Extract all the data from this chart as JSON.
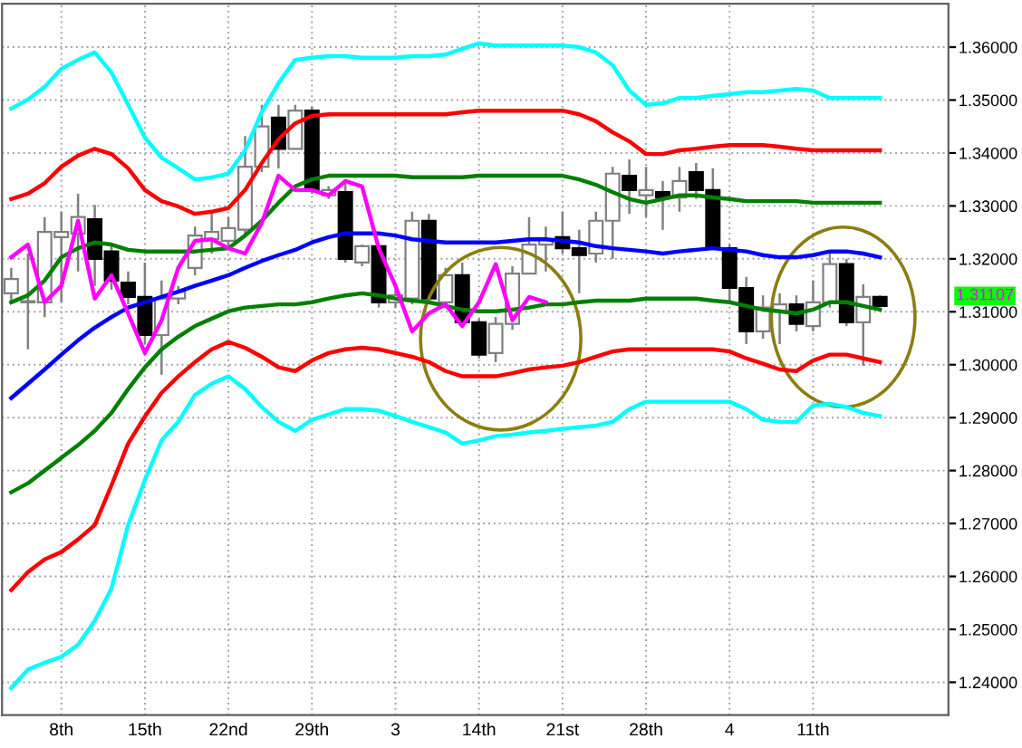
{
  "chart_data": {
    "type": "candlestick",
    "categories": [
      null,
      null,
      null,
      "8th",
      null,
      null,
      null,
      null,
      "15th",
      null,
      null,
      null,
      null,
      "22nd",
      null,
      null,
      null,
      null,
      "29th",
      null,
      null,
      null,
      null,
      "3",
      null,
      null,
      null,
      null,
      "14th",
      null,
      null,
      null,
      null,
      "21st",
      null,
      null,
      null,
      null,
      "28th",
      null,
      null,
      null,
      null,
      "4",
      null,
      null,
      null,
      null,
      "11th",
      null,
      null,
      null,
      null
    ],
    "ohlc": [
      [
        1.3135,
        1.3183,
        1.3114,
        1.3162
      ],
      [
        1.3118,
        1.321,
        1.3029,
        1.312
      ],
      [
        1.3118,
        1.3279,
        1.309,
        1.3251
      ],
      [
        1.3241,
        1.3289,
        1.3118,
        1.3251
      ],
      [
        1.3248,
        1.3323,
        1.3176,
        1.3279
      ],
      [
        1.3275,
        1.3302,
        1.3149,
        1.32
      ],
      [
        1.3214,
        1.3227,
        1.3142,
        1.3159
      ],
      [
        1.3155,
        1.3176,
        1.3114,
        1.3128
      ],
      [
        1.3128,
        1.3193,
        1.3039,
        1.3056
      ],
      [
        1.3056,
        1.3159,
        1.2981,
        1.3125
      ],
      [
        1.3125,
        1.3149,
        1.3114,
        1.3138
      ],
      [
        1.3183,
        1.3261,
        1.3169,
        1.3244
      ],
      [
        1.3237,
        1.3289,
        1.321,
        1.3251
      ],
      [
        1.3234,
        1.3279,
        1.3217,
        1.3258
      ],
      [
        1.3255,
        1.3432,
        1.3244,
        1.3374
      ],
      [
        1.3374,
        1.3491,
        1.3364,
        1.345
      ],
      [
        1.3467,
        1.3491,
        1.3371,
        1.3408
      ],
      [
        1.3408,
        1.3491,
        1.3408,
        1.348
      ],
      [
        1.348,
        1.3487,
        1.3323,
        1.333
      ],
      [
        1.332,
        1.3337,
        1.3313,
        1.333
      ],
      [
        1.3326,
        1.3347,
        1.3193,
        1.32
      ],
      [
        1.3193,
        1.3227,
        1.3186,
        1.3224
      ],
      [
        1.3224,
        1.3227,
        1.3108,
        1.3118
      ],
      [
        1.3118,
        1.3142,
        1.3108,
        1.3131
      ],
      [
        1.3125,
        1.3289,
        1.3114,
        1.3272
      ],
      [
        1.3272,
        1.3285,
        1.3114,
        1.3125
      ],
      [
        1.3118,
        1.3183,
        1.3108,
        1.3169
      ],
      [
        1.3169,
        1.3193,
        1.3073,
        1.308
      ],
      [
        1.308,
        1.3087,
        1.3012,
        1.3019
      ],
      [
        1.3022,
        1.309,
        1.3005,
        1.3077
      ],
      [
        1.3077,
        1.3186,
        1.3066,
        1.3172
      ],
      [
        1.3172,
        1.3279,
        1.3172,
        1.3227
      ],
      [
        1.3227,
        1.3261,
        1.3176,
        1.3237
      ],
      [
        1.3241,
        1.3289,
        1.321,
        1.322
      ],
      [
        1.322,
        1.3255,
        1.3135,
        1.3207
      ],
      [
        1.321,
        1.3289,
        1.3193,
        1.3272
      ],
      [
        1.3272,
        1.3374,
        1.32,
        1.3361
      ],
      [
        1.3357,
        1.3388,
        1.3285,
        1.333
      ],
      [
        1.332,
        1.3374,
        1.3279,
        1.333
      ],
      [
        1.3326,
        1.3347,
        1.3255,
        1.3316
      ],
      [
        1.3316,
        1.3374,
        1.3289,
        1.3347
      ],
      [
        1.3364,
        1.3381,
        1.3313,
        1.333
      ],
      [
        1.333,
        1.3371,
        1.3217,
        1.322
      ],
      [
        1.322,
        1.3227,
        1.3118,
        1.3145
      ],
      [
        1.3145,
        1.3166,
        1.3039,
        1.3063
      ],
      [
        1.3063,
        1.3131,
        1.3049,
        1.3108
      ],
      [
        1.3101,
        1.3135,
        1.3039,
        1.3114
      ],
      [
        1.3114,
        1.3131,
        1.3063,
        1.3077
      ],
      [
        1.3073,
        1.3159,
        1.3063,
        1.3118
      ],
      [
        1.3118,
        1.321,
        1.3108,
        1.319
      ],
      [
        1.319,
        1.32,
        1.3073,
        1.308
      ],
      [
        1.308,
        1.3152,
        1.2998,
        1.3128
      ],
      [
        1.3128,
        1.3131,
        1.3108,
        1.3111
      ]
    ],
    "series": [
      {
        "type": "line",
        "color": "#00ffff",
        "values": [
          1.3484,
          1.3501,
          1.3525,
          1.3559,
          1.3576,
          1.359,
          1.3552,
          1.3491,
          1.3429,
          1.3391,
          1.3371,
          1.335,
          1.3354,
          1.3361,
          1.3405,
          1.3477,
          1.3532,
          1.3576,
          1.358,
          1.3583,
          1.3583,
          1.358,
          1.358,
          1.358,
          1.3583,
          1.3583,
          1.3586,
          1.3597,
          1.3607,
          1.3603,
          1.3603,
          1.3603,
          1.3603,
          1.3603,
          1.36,
          1.359,
          1.3566,
          1.3518,
          1.3491,
          1.3494,
          1.3504,
          1.3504,
          1.3508,
          1.3511,
          1.3515,
          1.3515,
          1.3518,
          1.3521,
          1.3518,
          1.3504,
          1.3504,
          1.3504,
          1.3504
        ]
      },
      {
        "type": "line",
        "color": "#ff0000",
        "values": [
          1.3313,
          1.3323,
          1.3343,
          1.3374,
          1.3395,
          1.3408,
          1.3398,
          1.3371,
          1.333,
          1.3309,
          1.3299,
          1.3285,
          1.3289,
          1.3296,
          1.333,
          1.3381,
          1.3426,
          1.3456,
          1.347,
          1.3473,
          1.3473,
          1.3473,
          1.3473,
          1.3473,
          1.3473,
          1.3473,
          1.3473,
          1.3477,
          1.348,
          1.348,
          1.348,
          1.348,
          1.348,
          1.348,
          1.3473,
          1.346,
          1.3439,
          1.3422,
          1.3398,
          1.3398,
          1.3405,
          1.3408,
          1.3412,
          1.3415,
          1.3415,
          1.3415,
          1.3412,
          1.3408,
          1.3405,
          1.3405,
          1.3405,
          1.3405,
          1.3405
        ]
      },
      {
        "type": "line",
        "color": "#008000",
        "values": [
          1.3118,
          1.3131,
          1.3159,
          1.3203,
          1.322,
          1.3231,
          1.3227,
          1.3217,
          1.3214,
          1.3214,
          1.3214,
          1.3214,
          1.3217,
          1.322,
          1.3244,
          1.3272,
          1.3306,
          1.3337,
          1.335,
          1.3357,
          1.3357,
          1.3357,
          1.3357,
          1.3357,
          1.3354,
          1.3354,
          1.3354,
          1.3354,
          1.3357,
          1.3357,
          1.3357,
          1.3357,
          1.3357,
          1.3357,
          1.335,
          1.334,
          1.3326,
          1.3313,
          1.3306,
          1.3313,
          1.332,
          1.332,
          1.3316,
          1.3313,
          1.3309,
          1.3309,
          1.3309,
          1.3309,
          1.3306,
          1.3306,
          1.3306,
          1.3306,
          1.3306
        ]
      },
      {
        "type": "line",
        "color": "#0000ff",
        "values": [
          1.2937,
          1.2964,
          1.2991,
          1.3019,
          1.3046,
          1.307,
          1.309,
          1.3108,
          1.3118,
          1.3128,
          1.3138,
          1.3149,
          1.3159,
          1.3169,
          1.3183,
          1.3196,
          1.3207,
          1.3217,
          1.3231,
          1.3241,
          1.3248,
          1.3248,
          1.3248,
          1.3244,
          1.3237,
          1.3234,
          1.3231,
          1.3231,
          1.3231,
          1.3231,
          1.3234,
          1.3237,
          1.3237,
          1.3234,
          1.3231,
          1.3224,
          1.322,
          1.3217,
          1.3214,
          1.321,
          1.3214,
          1.3217,
          1.322,
          1.3217,
          1.3214,
          1.3207,
          1.3203,
          1.3203,
          1.3207,
          1.3214,
          1.3214,
          1.321,
          1.3203
        ]
      },
      {
        "type": "line",
        "color": "#008000",
        "values": [
          1.2759,
          1.2776,
          1.28,
          1.2824,
          1.2848,
          1.2875,
          1.2909,
          1.2954,
          1.2995,
          1.3029,
          1.3053,
          1.3073,
          1.3087,
          1.3101,
          1.3108,
          1.3111,
          1.3114,
          1.3114,
          1.3118,
          1.3125,
          1.3131,
          1.3135,
          1.3131,
          1.3125,
          1.3121,
          1.3118,
          1.3111,
          1.3104,
          1.3101,
          1.3101,
          1.3104,
          1.3108,
          1.3114,
          1.3114,
          1.3118,
          1.3121,
          1.3121,
          1.3121,
          1.3125,
          1.3125,
          1.3125,
          1.3125,
          1.3121,
          1.3118,
          1.3111,
          1.3104,
          1.3101,
          1.3097,
          1.3104,
          1.3118,
          1.3118,
          1.3111,
          1.3104
        ]
      },
      {
        "type": "line",
        "color": "#ff0000",
        "values": [
          1.2574,
          1.2608,
          1.2632,
          1.2646,
          1.267,
          1.2697,
          1.2772,
          1.2851,
          1.2902,
          1.2947,
          1.2978,
          1.3005,
          1.3029,
          1.3043,
          1.3032,
          1.3015,
          1.2995,
          1.2988,
          1.3008,
          1.3022,
          1.3029,
          1.3032,
          1.3029,
          1.3022,
          1.3015,
          1.3005,
          1.2988,
          1.2978,
          1.2978,
          1.2978,
          1.2984,
          1.2991,
          1.2995,
          1.2998,
          1.3005,
          1.3015,
          1.3025,
          1.3029,
          1.3029,
          1.3029,
          1.3029,
          1.3029,
          1.3029,
          1.3025,
          1.3012,
          1.3002,
          1.2991,
          1.2988,
          1.3008,
          1.3019,
          1.3019,
          1.3012,
          1.3005
        ]
      },
      {
        "type": "line",
        "color": "#00ffff",
        "values": [
          1.2389,
          1.2424,
          1.2437,
          1.2448,
          1.2471,
          1.2516,
          1.2577,
          1.2697,
          1.2782,
          1.2857,
          1.2892,
          1.2943,
          1.2964,
          1.2978,
          1.2954,
          1.292,
          1.2892,
          1.2875,
          1.2896,
          1.2906,
          1.2916,
          1.2916,
          1.2913,
          1.2903,
          1.2892,
          1.2882,
          1.2872,
          1.2851,
          1.2857,
          1.2865,
          1.2868,
          1.2872,
          1.2875,
          1.2879,
          1.2882,
          1.2885,
          1.2892,
          1.2916,
          1.293,
          1.293,
          1.293,
          1.293,
          1.293,
          1.293,
          1.2916,
          1.2896,
          1.2892,
          1.2892,
          1.2923,
          1.2926,
          1.292,
          1.2909,
          1.2903
        ]
      },
      {
        "type": "line",
        "color": "#ff00ff",
        "values": [
          1.3203,
          1.3227,
          1.3118,
          1.3149,
          1.3272,
          1.3125,
          1.3169,
          1.3097,
          1.3022,
          1.3084,
          1.3183,
          1.3234,
          1.3237,
          1.322,
          1.321,
          1.3268,
          1.3357,
          1.333,
          1.333,
          1.332,
          1.3347,
          1.3337,
          1.322,
          1.3149,
          1.3063,
          1.3097,
          1.3114,
          1.3073,
          1.3118,
          1.319,
          1.3084,
          1.3128,
          1.3118,
          null,
          null,
          null,
          null,
          null,
          null,
          null,
          null,
          null,
          null,
          null,
          null,
          null,
          null,
          null,
          null,
          null,
          null,
          null,
          null
        ]
      }
    ],
    "ylim": [
      1.2338,
      1.3682
    ],
    "yticks": [
      {
        "value": 1.24,
        "label": "1.24000"
      },
      {
        "value": 1.25,
        "label": "1.25000"
      },
      {
        "value": 1.26,
        "label": "1.26000"
      },
      {
        "value": 1.27,
        "label": "1.27000"
      },
      {
        "value": 1.28,
        "label": "1.28000"
      },
      {
        "value": 1.29,
        "label": "1.29000"
      },
      {
        "value": 1.3,
        "label": "1.30000"
      },
      {
        "value": 1.31,
        "label": "1.31000"
      },
      {
        "value": 1.32,
        "label": "1.32000"
      },
      {
        "value": 1.33,
        "label": "1.33000"
      },
      {
        "value": 1.34,
        "label": "1.34000"
      },
      {
        "value": 1.35,
        "label": "1.35000"
      },
      {
        "value": 1.36,
        "label": "1.36000"
      }
    ],
    "annotations": [
      "1.31107"
    ],
    "grid": true
  }
}
